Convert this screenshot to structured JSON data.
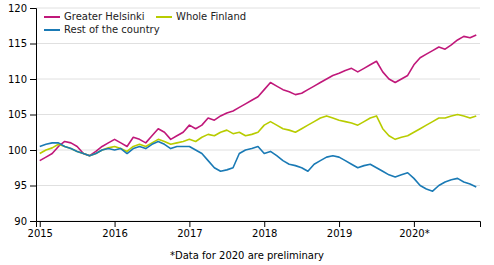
{
  "chart_data": {
    "type": "line",
    "annotations": [
      "*Data for 2020 are preliminary"
    ],
    "x": [
      2015,
      2015.0833333333,
      2015.1666666667,
      2015.25,
      2015.3333333333,
      2015.4166666667,
      2015.5,
      2015.5833333333,
      2015.6666666667,
      2015.75,
      2015.8333333333,
      2015.9166666667,
      2016,
      2016.0833333333,
      2016.1666666667,
      2016.25,
      2016.3333333333,
      2016.4166666667,
      2016.5,
      2016.5833333333,
      2016.6666666667,
      2016.75,
      2016.8333333333,
      2016.9166666667,
      2017,
      2017.0833333333,
      2017.1666666667,
      2017.25,
      2017.3333333333,
      2017.4166666667,
      2017.5,
      2017.5833333333,
      2017.6666666667,
      2017.75,
      2017.8333333333,
      2017.9166666667,
      2018,
      2018.0833333333,
      2018.1666666667,
      2018.25,
      2018.3333333333,
      2018.4166666667,
      2018.5,
      2018.5833333333,
      2018.6666666667,
      2018.75,
      2018.8333333333,
      2018.9166666667,
      2019,
      2019.0833333333,
      2019.1666666667,
      2019.25,
      2019.3333333333,
      2019.4166666667,
      2019.5,
      2019.5833333333,
      2019.6666666667,
      2019.75,
      2019.8333333333,
      2019.9166666667,
      2020,
      2020.0833333333,
      2020.1666666667,
      2020.25,
      2020.3333333333,
      2020.4166666667,
      2020.5,
      2020.5833333333,
      2020.6666666667,
      2020.75,
      2020.8333333333
    ],
    "series": [
      {
        "name": "Greater Helsinki",
        "color": "#c0187a",
        "values": [
          98.5,
          99.0,
          99.5,
          100.5,
          101.2,
          101.0,
          100.5,
          99.5,
          99.2,
          99.8,
          100.5,
          101.0,
          101.5,
          101.0,
          100.5,
          101.8,
          101.5,
          101.0,
          102.0,
          103.0,
          102.5,
          101.5,
          102.0,
          102.5,
          103.5,
          103.0,
          103.5,
          104.5,
          104.2,
          104.8,
          105.2,
          105.5,
          106.0,
          106.5,
          107.0,
          107.5,
          108.5,
          109.5,
          109.0,
          108.5,
          108.2,
          107.8,
          108.0,
          108.5,
          109.0,
          109.5,
          110.0,
          110.5,
          110.8,
          111.2,
          111.5,
          111.0,
          111.5,
          112.0,
          112.5,
          111.0,
          110.0,
          109.5,
          110.0,
          110.5,
          112.0,
          113.0,
          113.5,
          114.0,
          114.5,
          114.2,
          114.8,
          115.5,
          116.0,
          115.8,
          116.2
        ]
      },
      {
        "name": "Whole Finland",
        "color": "#b8cc00",
        "values": [
          99.5,
          100.0,
          100.3,
          100.8,
          100.5,
          100.2,
          99.8,
          99.5,
          99.2,
          99.5,
          100.0,
          100.3,
          100.5,
          100.2,
          99.8,
          100.5,
          100.8,
          100.5,
          101.0,
          101.5,
          101.2,
          100.8,
          101.0,
          101.2,
          101.5,
          101.2,
          101.8,
          102.2,
          102.0,
          102.5,
          102.8,
          102.3,
          102.5,
          102.0,
          102.2,
          102.5,
          103.5,
          104.0,
          103.5,
          103.0,
          102.8,
          102.5,
          103.0,
          103.5,
          104.0,
          104.5,
          104.8,
          104.5,
          104.2,
          104.0,
          103.8,
          103.5,
          104.0,
          104.5,
          104.8,
          103.0,
          102.0,
          101.5,
          101.8,
          102.0,
          102.5,
          103.0,
          103.5,
          104.0,
          104.5,
          104.5,
          104.8,
          105.0,
          104.8,
          104.5,
          104.8
        ]
      },
      {
        "name": "Rest of the country",
        "color": "#1a7ab5",
        "values": [
          100.5,
          100.8,
          101.0,
          101.0,
          100.5,
          100.2,
          99.8,
          99.5,
          99.2,
          99.5,
          100.0,
          100.2,
          100.0,
          100.2,
          99.5,
          100.2,
          100.5,
          100.2,
          100.8,
          101.2,
          100.8,
          100.2,
          100.5,
          100.5,
          100.5,
          100.0,
          99.5,
          98.5,
          97.5,
          97.0,
          97.2,
          97.5,
          99.5,
          100.0,
          100.2,
          100.5,
          99.5,
          99.8,
          99.2,
          98.5,
          98.0,
          97.8,
          97.5,
          97.0,
          98.0,
          98.5,
          99.0,
          99.2,
          99.0,
          98.5,
          98.0,
          97.5,
          97.8,
          98.0,
          97.5,
          97.0,
          96.5,
          96.2,
          96.5,
          96.8,
          96.0,
          95.0,
          94.5,
          94.2,
          95.0,
          95.5,
          95.8,
          96.0,
          95.5,
          95.2,
          94.8
        ]
      }
    ],
    "xlim": [
      2014.95,
      2020.8833333333
    ],
    "xticks": [
      2015,
      2016,
      2017,
      2018,
      2019,
      {
        "value": 2020,
        "label": "2020*"
      }
    ],
    "ylim": [
      90,
      120
    ],
    "yticks": [
      90,
      95,
      100,
      105,
      110,
      115,
      120
    ],
    "grid": true,
    "legend": "upper left"
  }
}
